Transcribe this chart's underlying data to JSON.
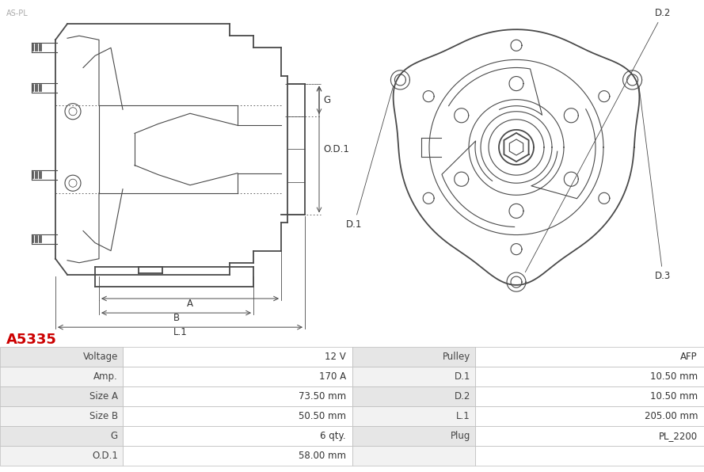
{
  "title": "A5335",
  "title_color": "#cc0000",
  "bg_color": "#ffffff",
  "table_data": {
    "left_col": [
      [
        "Voltage",
        "12 V"
      ],
      [
        "Amp.",
        "170 A"
      ],
      [
        "Size A",
        "73.50 mm"
      ],
      [
        "Size B",
        "50.50 mm"
      ],
      [
        "G",
        "6 qty."
      ],
      [
        "O.D.1",
        "58.00 mm"
      ]
    ],
    "right_col": [
      [
        "Pulley",
        "AFP"
      ],
      [
        "D.1",
        "10.50 mm"
      ],
      [
        "D.2",
        "10.50 mm"
      ],
      [
        "L.1",
        "205.00 mm"
      ],
      [
        "Plug",
        "PL_2200"
      ],
      [
        "",
        ""
      ]
    ]
  },
  "row_colors": [
    "#e6e6e6",
    "#f2f2f2"
  ],
  "line_color": "#4a4a4a",
  "dim_color": "#4a4a4a",
  "table_fontsize": 8.5
}
